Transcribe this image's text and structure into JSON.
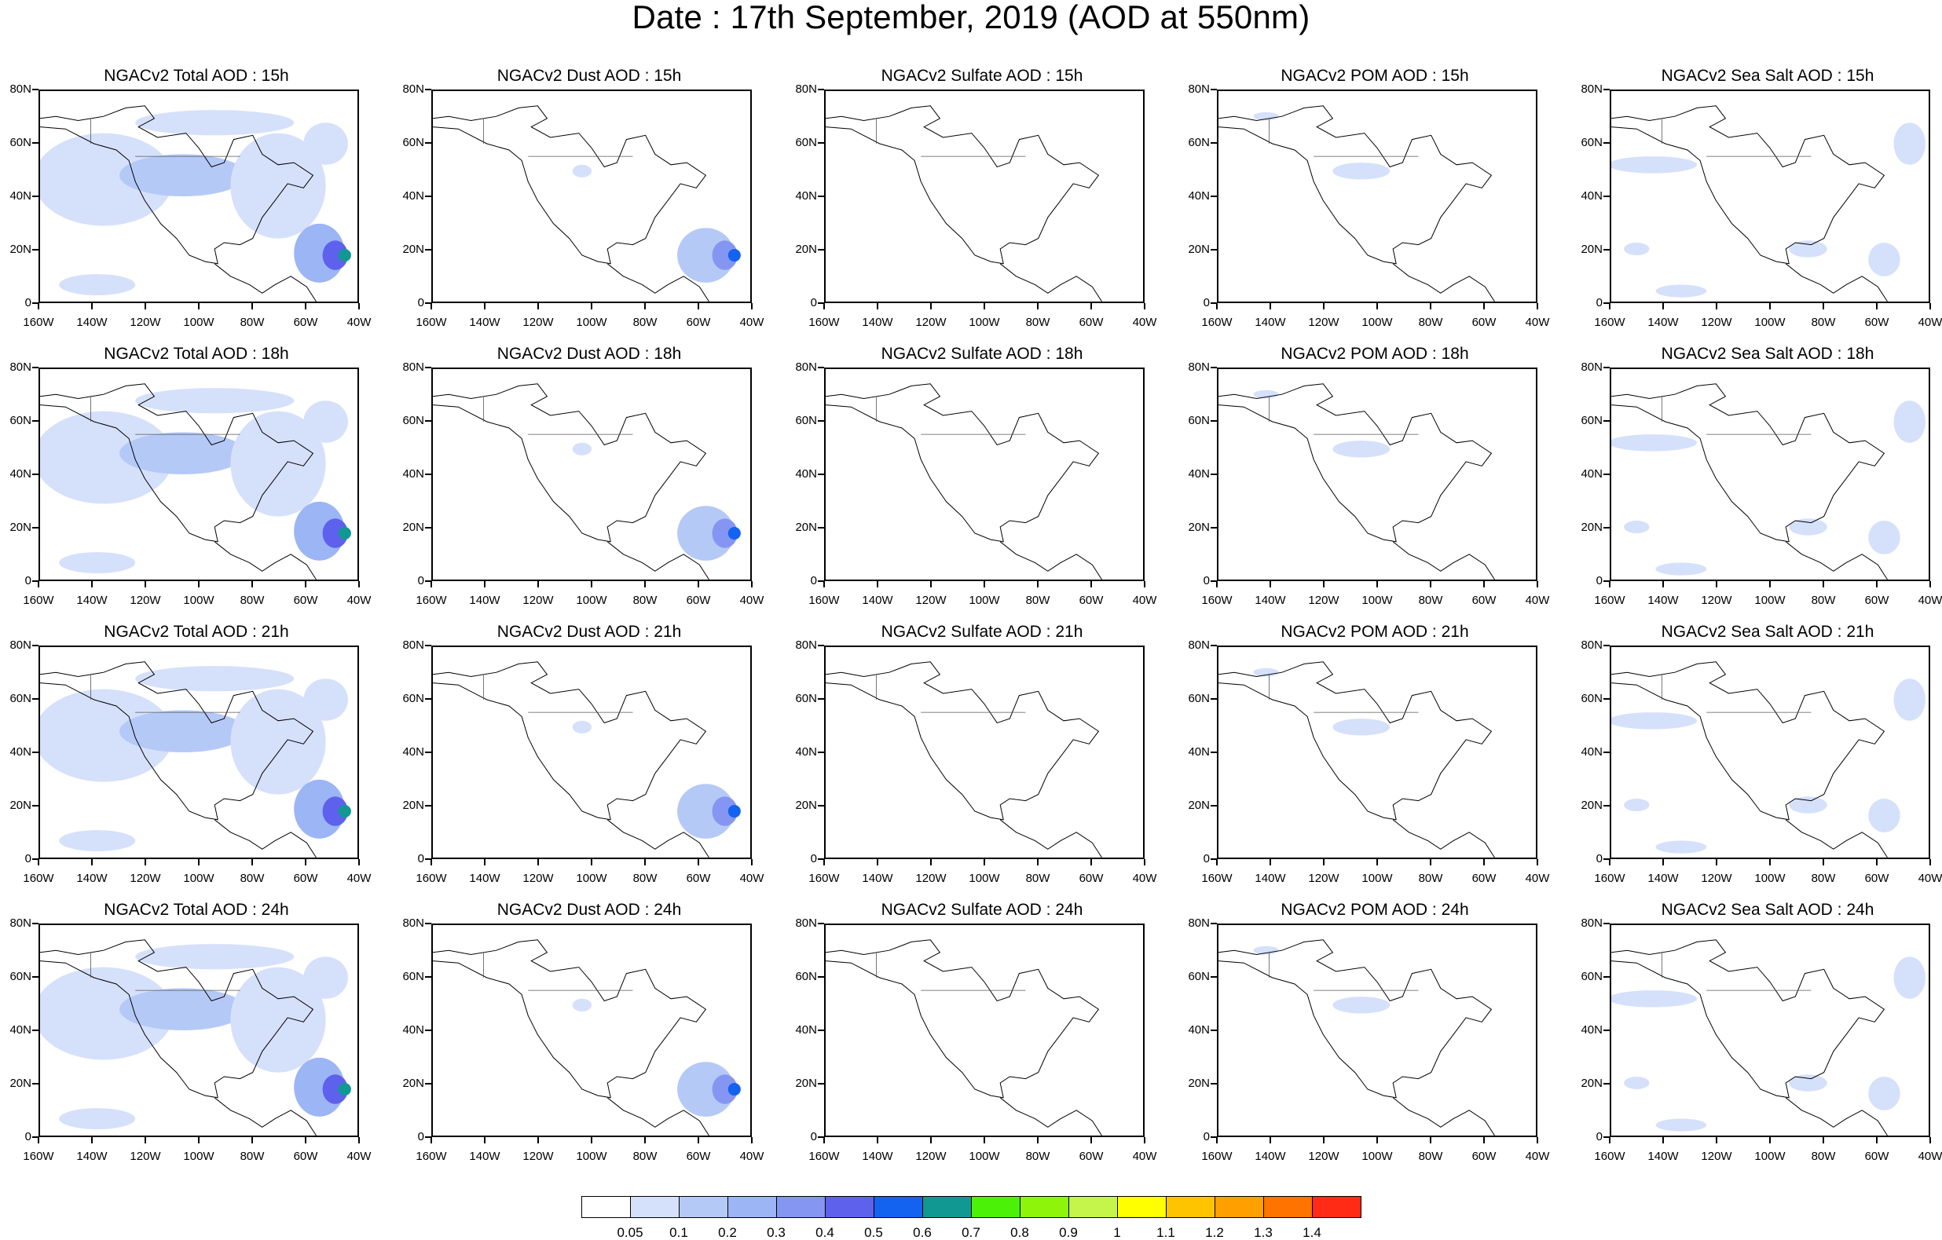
{
  "page": {
    "title": "Date : 17th September, 2019 (AOD at 550nm)"
  },
  "axes": {
    "lat_labels": [
      "80N",
      "60N",
      "40N",
      "20N",
      "0"
    ],
    "lon_labels": [
      "160W",
      "140W",
      "120W",
      "100W",
      "80W",
      "60W",
      "40W"
    ]
  },
  "panels": [
    {
      "title": "NGACv2 Total AOD : 15h",
      "species": "total",
      "hour": 15
    },
    {
      "title": "NGACv2 Dust AOD : 15h",
      "species": "dust",
      "hour": 15
    },
    {
      "title": "NGACv2 Sulfate AOD : 15h",
      "species": "sulfate",
      "hour": 15
    },
    {
      "title": "NGACv2 POM AOD : 15h",
      "species": "pom",
      "hour": 15
    },
    {
      "title": "NGACv2 Sea Salt AOD : 15h",
      "species": "seasalt",
      "hour": 15
    },
    {
      "title": "NGACv2 Total AOD : 18h",
      "species": "total",
      "hour": 18
    },
    {
      "title": "NGACv2 Dust AOD : 18h",
      "species": "dust",
      "hour": 18
    },
    {
      "title": "NGACv2 Sulfate AOD : 18h",
      "species": "sulfate",
      "hour": 18
    },
    {
      "title": "NGACv2 POM AOD : 18h",
      "species": "pom",
      "hour": 18
    },
    {
      "title": "NGACv2 Sea Salt AOD : 18h",
      "species": "seasalt",
      "hour": 18
    },
    {
      "title": "NGACv2 Total AOD : 21h",
      "species": "total",
      "hour": 21
    },
    {
      "title": "NGACv2 Dust AOD : 21h",
      "species": "dust",
      "hour": 21
    },
    {
      "title": "NGACv2 Sulfate AOD : 21h",
      "species": "sulfate",
      "hour": 21
    },
    {
      "title": "NGACv2 POM AOD : 21h",
      "species": "pom",
      "hour": 21
    },
    {
      "title": "NGACv2 Sea Salt AOD : 21h",
      "species": "seasalt",
      "hour": 21
    },
    {
      "title": "NGACv2 Total AOD : 24h",
      "species": "total",
      "hour": 24
    },
    {
      "title": "NGACv2 Dust AOD : 24h",
      "species": "dust",
      "hour": 24
    },
    {
      "title": "NGACv2 Sulfate AOD : 24h",
      "species": "sulfate",
      "hour": 24
    },
    {
      "title": "NGACv2 POM AOD : 24h",
      "species": "pom",
      "hour": 24
    },
    {
      "title": "NGACv2 Sea Salt  AOD : 24h",
      "species": "seasalt",
      "hour": 24
    }
  ],
  "colorbar": {
    "labels": [
      "0.05",
      "0.1",
      "0.2",
      "0.3",
      "0.4",
      "0.5",
      "0.6",
      "0.7",
      "0.8",
      "0.9",
      "1",
      "1.1",
      "1.2",
      "1.3",
      "1.4"
    ],
    "colors": [
      "#ffffff",
      "#d5e0fb",
      "#b5c9f7",
      "#9bb5f5",
      "#8596f2",
      "#5e61ec",
      "#1463f0",
      "#119893",
      "#4cf108",
      "#8ef40a",
      "#c5f54a",
      "#ffff00",
      "#ffc400",
      "#ffa000",
      "#ff7300",
      "#ff2b15"
    ]
  }
}
